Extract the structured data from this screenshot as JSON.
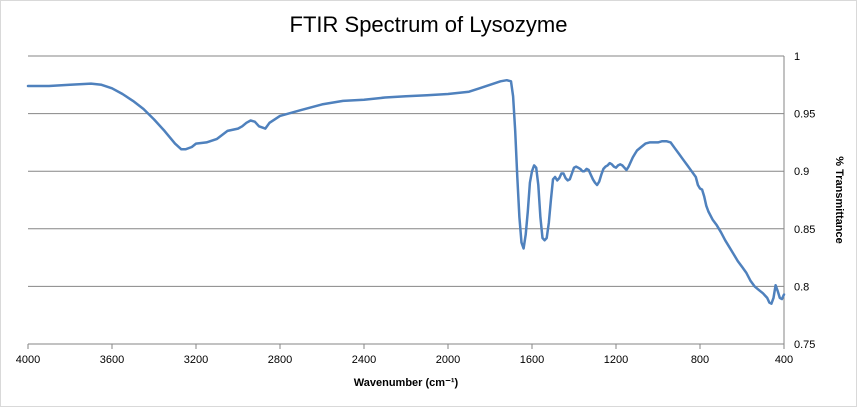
{
  "chart_data": {
    "type": "line",
    "title": "FTIR Spectrum of Lysozyme",
    "xlabel": "Wavenumber (cm⁻¹)",
    "ylabel": "% Transmittance",
    "xlim": [
      4000,
      400
    ],
    "x_reversed": true,
    "ylim": [
      0.75,
      1
    ],
    "x_ticks": [
      "4000",
      "3600",
      "3200",
      "2800",
      "2400",
      "2000",
      "1600",
      "1200",
      "800",
      "400"
    ],
    "y_ticks": [
      "0.75",
      "0.8",
      "0.85",
      "0.9",
      "0.95",
      "1"
    ],
    "grid": "horizontal",
    "series": [
      {
        "color": "#4f81bd",
        "x": [
          4000,
          3900,
          3800,
          3700,
          3650,
          3600,
          3550,
          3500,
          3450,
          3400,
          3350,
          3300,
          3270,
          3250,
          3220,
          3200,
          3150,
          3100,
          3050,
          3000,
          2980,
          2960,
          2940,
          2920,
          2900,
          2870,
          2850,
          2800,
          2700,
          2600,
          2500,
          2400,
          2300,
          2200,
          2100,
          2000,
          1900,
          1850,
          1800,
          1750,
          1720,
          1700,
          1690,
          1680,
          1670,
          1660,
          1650,
          1640,
          1630,
          1620,
          1610,
          1600,
          1590,
          1580,
          1570,
          1560,
          1550,
          1540,
          1530,
          1520,
          1510,
          1500,
          1490,
          1480,
          1470,
          1460,
          1450,
          1440,
          1430,
          1420,
          1410,
          1400,
          1390,
          1380,
          1370,
          1360,
          1350,
          1340,
          1330,
          1320,
          1310,
          1300,
          1290,
          1280,
          1270,
          1260,
          1250,
          1240,
          1230,
          1220,
          1210,
          1200,
          1190,
          1180,
          1170,
          1160,
          1150,
          1140,
          1130,
          1120,
          1110,
          1100,
          1080,
          1060,
          1040,
          1020,
          1000,
          980,
          960,
          940,
          920,
          900,
          880,
          860,
          840,
          820,
          810,
          800,
          790,
          780,
          770,
          760,
          740,
          720,
          700,
          680,
          660,
          640,
          620,
          600,
          580,
          560,
          540,
          520,
          500,
          490,
          480,
          470,
          460,
          450,
          440,
          430,
          420,
          410,
          400
        ],
        "y": [
          0.974,
          0.974,
          0.975,
          0.976,
          0.975,
          0.972,
          0.967,
          0.961,
          0.954,
          0.945,
          0.935,
          0.924,
          0.919,
          0.919,
          0.921,
          0.924,
          0.925,
          0.928,
          0.935,
          0.937,
          0.939,
          0.942,
          0.944,
          0.943,
          0.939,
          0.937,
          0.942,
          0.948,
          0.953,
          0.958,
          0.961,
          0.962,
          0.964,
          0.965,
          0.966,
          0.967,
          0.969,
          0.972,
          0.975,
          0.978,
          0.979,
          0.978,
          0.965,
          0.935,
          0.895,
          0.86,
          0.838,
          0.833,
          0.845,
          0.865,
          0.89,
          0.9,
          0.905,
          0.903,
          0.888,
          0.86,
          0.842,
          0.84,
          0.842,
          0.855,
          0.875,
          0.893,
          0.895,
          0.892,
          0.894,
          0.898,
          0.898,
          0.894,
          0.892,
          0.893,
          0.898,
          0.903,
          0.904,
          0.903,
          0.902,
          0.9,
          0.9,
          0.902,
          0.901,
          0.897,
          0.893,
          0.89,
          0.888,
          0.891,
          0.897,
          0.902,
          0.904,
          0.905,
          0.907,
          0.906,
          0.904,
          0.903,
          0.905,
          0.906,
          0.905,
          0.903,
          0.901,
          0.904,
          0.908,
          0.912,
          0.915,
          0.918,
          0.921,
          0.924,
          0.925,
          0.925,
          0.925,
          0.926,
          0.926,
          0.925,
          0.92,
          0.915,
          0.91,
          0.905,
          0.9,
          0.895,
          0.888,
          0.885,
          0.884,
          0.878,
          0.87,
          0.865,
          0.858,
          0.853,
          0.847,
          0.84,
          0.834,
          0.828,
          0.822,
          0.817,
          0.812,
          0.805,
          0.8,
          0.797,
          0.794,
          0.792,
          0.79,
          0.786,
          0.785,
          0.79,
          0.801,
          0.796,
          0.79,
          0.789,
          0.793
        ]
      }
    ]
  }
}
